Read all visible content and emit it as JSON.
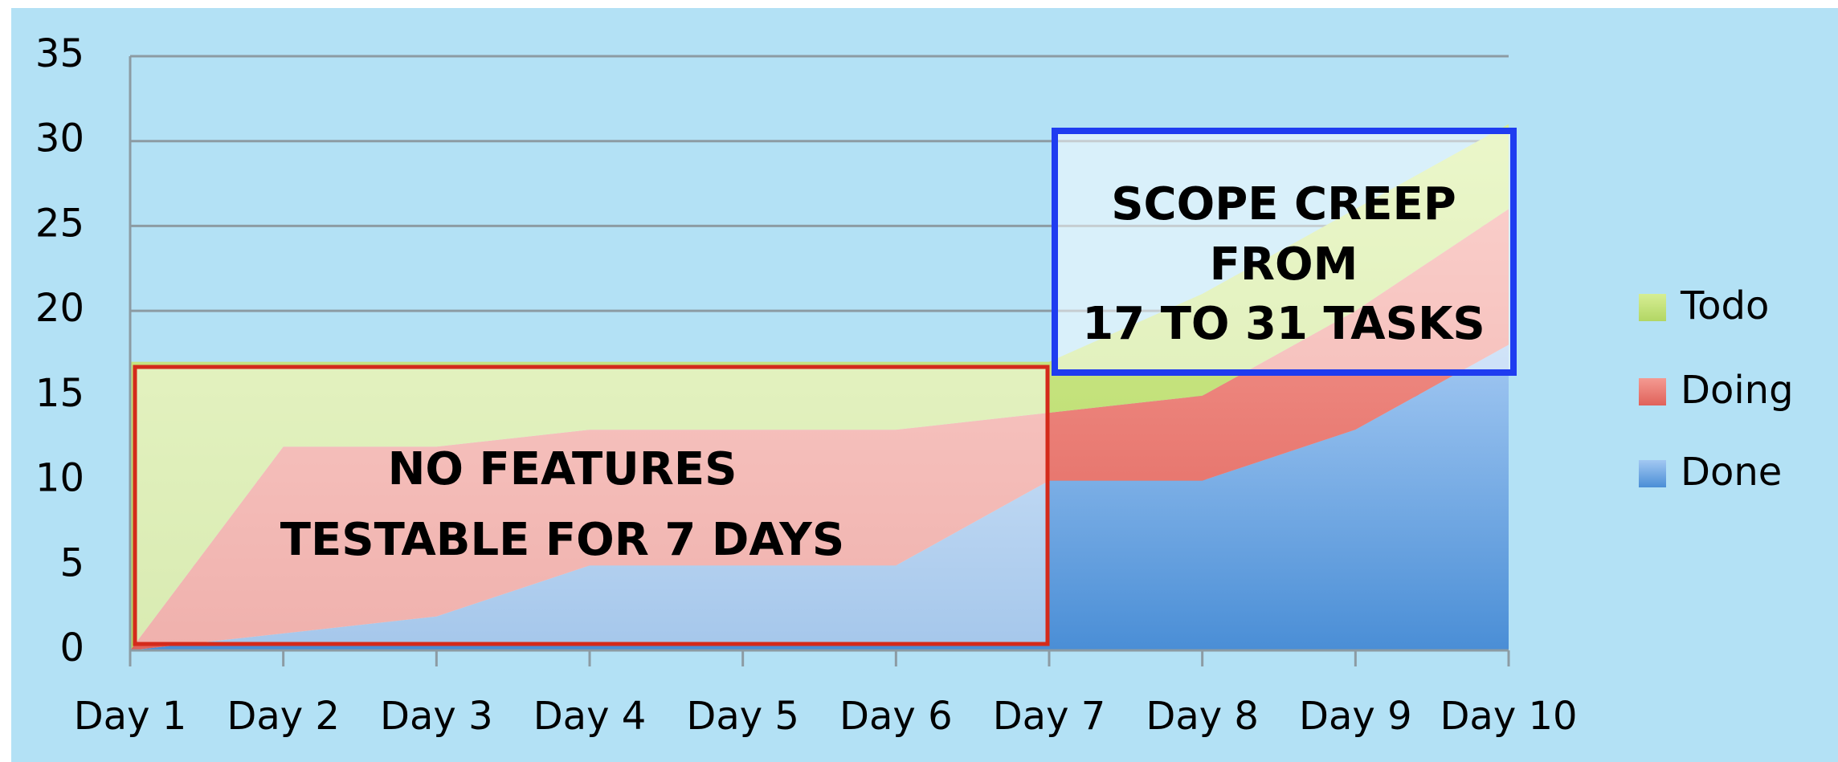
{
  "chart_data": {
    "type": "stacked_area",
    "categories": [
      "Day 1",
      "Day 2",
      "Day 3",
      "Day 4",
      "Day 5",
      "Day 6",
      "Day 7",
      "Day 8",
      "Day 9",
      "Day 10"
    ],
    "series": [
      {
        "name": "Done",
        "color": "#5d9de0",
        "values": [
          0,
          1,
          2,
          5,
          5,
          5,
          10,
          10,
          13,
          18
        ]
      },
      {
        "name": "Doing",
        "color": "#e8736b",
        "values": [
          0,
          11,
          10,
          8,
          8,
          8,
          4,
          5,
          7,
          8
        ]
      },
      {
        "name": "Todo",
        "color": "#c2e07a",
        "values": [
          17,
          5,
          5,
          4,
          4,
          4,
          3,
          6,
          6,
          5
        ]
      }
    ],
    "ylim": [
      0,
      35
    ],
    "yticks": [
      0,
      5,
      10,
      15,
      20,
      25,
      30,
      35
    ],
    "grid": true,
    "legend": "right",
    "annotations": [
      {
        "lines": [
          "NO FEATURES",
          "TESTABLE FOR  7 DAYS"
        ],
        "color": "#d42a1a"
      },
      {
        "lines": [
          "SCOPE CREEP",
          "FROM",
          "17 TO 31 TASKS"
        ],
        "color": "#1f3cf0"
      }
    ]
  }
}
